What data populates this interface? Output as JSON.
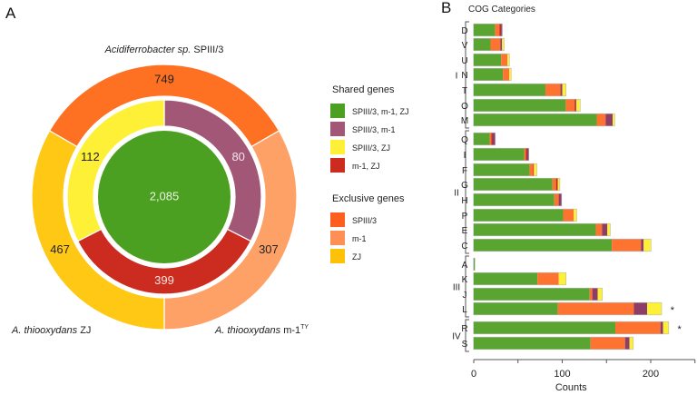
{
  "chart_data": [
    {
      "panel": "A",
      "type": "pie",
      "subtype": "nested-donut",
      "title": "",
      "organism_labels": {
        "top": {
          "italic": "Acidiferrobacter sp.",
          "plain": " SPIII/3"
        },
        "bottom_left": {
          "italic": "A. thiooxydans",
          "plain": " ZJ"
        },
        "bottom_right": {
          "italic": "A. thiooxydans",
          "plain": " m-1",
          "superscript": "TY"
        }
      },
      "center": {
        "name": "SPIII/3, m-1, ZJ",
        "value": 2085,
        "label": "2,085",
        "color": "#4ca021"
      },
      "inner_ring": [
        {
          "name": "SPIII/3, m-1",
          "value": 80,
          "label": "80",
          "color": "#a35777",
          "start_deg": 0,
          "end_deg": 117,
          "label_color": "#f2e6ec"
        },
        {
          "name": "m-1, ZJ",
          "value": 399,
          "label": "399",
          "color": "#cb2c1f",
          "start_deg": 117,
          "end_deg": 243,
          "label_color": "#fbe3e0"
        },
        {
          "name": "SPIII/3, ZJ",
          "value": 112,
          "label": "112",
          "color": "#fdf037",
          "start_deg": 243,
          "end_deg": 360,
          "label_color": "#222222"
        }
      ],
      "outer_ring": [
        {
          "name": "SPIII/3",
          "value": 749,
          "label": "749",
          "color": "#fe7123",
          "start_deg": -60,
          "end_deg": 60,
          "label_color": "#222222"
        },
        {
          "name": "m-1",
          "value": 307,
          "label": "307",
          "color": "#fea166",
          "start_deg": 60,
          "end_deg": 180,
          "label_color": "#222222"
        },
        {
          "name": "ZJ",
          "value": 467,
          "label": "467",
          "color": "#fec815",
          "start_deg": 180,
          "end_deg": 300,
          "label_color": "#222222"
        }
      ],
      "legend": {
        "placement": "right",
        "groups": [
          {
            "title": "Shared genes",
            "items": [
              {
                "label": "SPIII/3, m-1, ZJ",
                "color": "#4ca021"
              },
              {
                "label": "SPIII/3, m-1",
                "color": "#a35777"
              },
              {
                "label": "SPIII/3, ZJ",
                "color": "#fdf037"
              },
              {
                "label": "m-1, ZJ",
                "color": "#cb2c1f"
              }
            ]
          },
          {
            "title": "Exclusive genes",
            "items": [
              {
                "label": "SPIII/3",
                "color": "#fe5f1e"
              },
              {
                "label": "m-1",
                "color": "#fe8f55"
              },
              {
                "label": "ZJ",
                "color": "#fec10a"
              }
            ]
          }
        ]
      }
    },
    {
      "panel": "B",
      "type": "bar",
      "orientation": "horizontal",
      "stacked": true,
      "title": "COG Categories",
      "xlabel": "Counts",
      "ylabel": "",
      "xlim": [
        0,
        250
      ],
      "xticks": [
        0,
        50,
        100,
        150,
        200,
        250
      ],
      "xtick_labels": [
        "0",
        "",
        "100",
        "",
        "200",
        ""
      ],
      "grid": false,
      "series": [
        {
          "name": "SPIII/3, m-1, ZJ",
          "color": "#5aa531"
        },
        {
          "name": "SPIII/3",
          "color": "#fe7330"
        },
        {
          "name": "m-1, ZJ",
          "color": "#c02b20"
        },
        {
          "name": "SPIII/3, m-1",
          "color": "#8e3d67"
        },
        {
          "name": "SPIII/3, ZJ",
          "color": "#fdf037"
        }
      ],
      "groups": [
        {
          "label": "I",
          "categories": [
            {
              "cat": "D",
              "values": [
                24,
                5,
                2,
                1,
                0
              ]
            },
            {
              "cat": "V",
              "values": [
                19,
                11,
                0,
                2,
                2
              ]
            },
            {
              "cat": "U",
              "values": [
                31,
                7,
                0,
                0,
                2
              ]
            },
            {
              "cat": "N",
              "values": [
                33,
                7,
                0,
                0,
                2
              ]
            },
            {
              "cat": "T",
              "values": [
                81,
                17,
                0,
                2,
                4
              ]
            },
            {
              "cat": "O",
              "values": [
                104,
                10,
                1,
                1,
                4
              ]
            },
            {
              "cat": "M",
              "values": [
                139,
                10,
                0,
                8,
                2
              ]
            }
          ]
        },
        {
          "label": "II",
          "categories": [
            {
              "cat": "Q",
              "values": [
                18,
                2,
                1,
                3,
                0
              ]
            },
            {
              "cat": "I",
              "values": [
                57,
                2,
                1,
                2,
                0
              ]
            },
            {
              "cat": "F",
              "values": [
                63,
                4,
                1,
                0,
                3
              ]
            },
            {
              "cat": "G",
              "values": [
                89,
                4,
                2,
                0,
                2
              ]
            },
            {
              "cat": "H",
              "values": [
                91,
                5,
                0,
                3,
                0
              ]
            },
            {
              "cat": "P",
              "values": [
                101,
                12,
                0,
                0,
                3
              ]
            },
            {
              "cat": "E",
              "values": [
                138,
                7,
                0,
                6,
                3
              ]
            },
            {
              "cat": "C",
              "values": [
                156,
                33,
                0,
                3,
                8
              ]
            }
          ]
        },
        {
          "label": "III",
          "categories": [
            {
              "cat": "A",
              "values": [
                1,
                0,
                0,
                0,
                0
              ]
            },
            {
              "cat": "K",
              "values": [
                72,
                24,
                0,
                0,
                8
              ]
            },
            {
              "cat": "J",
              "values": [
                131,
                3,
                0,
                6,
                5
              ]
            },
            {
              "cat": "L",
              "values": [
                95,
                86,
                0,
                15,
                16
              ],
              "annotation": "*"
            }
          ]
        },
        {
          "label": "IV",
          "categories": [
            {
              "cat": "R",
              "values": [
                160,
                51,
                0,
                3,
                6
              ],
              "annotation": "*"
            },
            {
              "cat": "S",
              "values": [
                132,
                39,
                0,
                5,
                4
              ]
            }
          ]
        }
      ]
    }
  ],
  "panel_labels": {
    "a": "A",
    "b": "B"
  }
}
